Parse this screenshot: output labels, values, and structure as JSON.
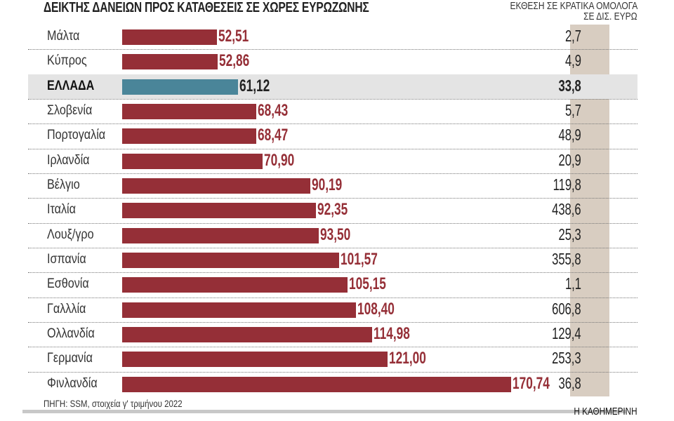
{
  "chart_data": {
    "type": "bar",
    "orientation": "horizontal",
    "title": "ΔΕΙΚΤΗΣ ΔΑΝΕΙΩΝ ΠΡΟΣ ΚΑΤΑΘΕΣΕΙΣ ΣΕ ΧΩΡΕΣ ΕΥΡΩΖΩΝΗΣ",
    "right_column_title": [
      "ΕΚΘΕΣΗ ΣΕ ΚΡΑΤΙΚΑ ΟΜΟΛΟΓΑ",
      "ΣΕ ΔΙΣ. ΕΥΡΩ"
    ],
    "categories": [
      "Μάλτα",
      "Κύπρος",
      "ΕΛΛΑΔΑ",
      "Σλοβενία",
      "Πορτογαλία",
      "Ιρλανδία",
      "Βέλγιο",
      "Ιταλία",
      "Λουξ/γρο",
      "Ισπανία",
      "Εσθονία",
      "Γαλλλία",
      "Ολλανδία",
      "Γερμανία",
      "Φινλανδία"
    ],
    "values": [
      52.51,
      52.86,
      61.12,
      68.43,
      68.47,
      70.9,
      90.19,
      92.35,
      93.5,
      101.57,
      105.15,
      108.4,
      114.98,
      121.0,
      170.74
    ],
    "value_labels": [
      "52,51",
      "52,86",
      "61,12",
      "68,43",
      "68,47",
      "70,90",
      "90,19",
      "92,35",
      "93,50",
      "101,57",
      "105,15",
      "108,40",
      "114,98",
      "121,00",
      "170,74"
    ],
    "exposure_labels": [
      "2,7",
      "4,9",
      "33,8",
      "5,7",
      "48,9",
      "20,9",
      "119,8",
      "438,6",
      "25,3",
      "355,8",
      "1,1",
      "606,8",
      "129,4",
      "253,3",
      "36,8"
    ],
    "highlight": "ΕΛΛΑΔΑ",
    "colors": {
      "bar": "#952f37",
      "highlight_bar": "#4a8599",
      "column_bg": "#d8cdc1",
      "highlight_row": "#e4e4e4"
    },
    "grid": false,
    "legend": "none"
  },
  "source": "ΠΗΓΗ: SSM, στοιχεία γ' τριμήνου 2022",
  "brand": "Η ΚΑΘΗΜΕΡΙΝΗ"
}
